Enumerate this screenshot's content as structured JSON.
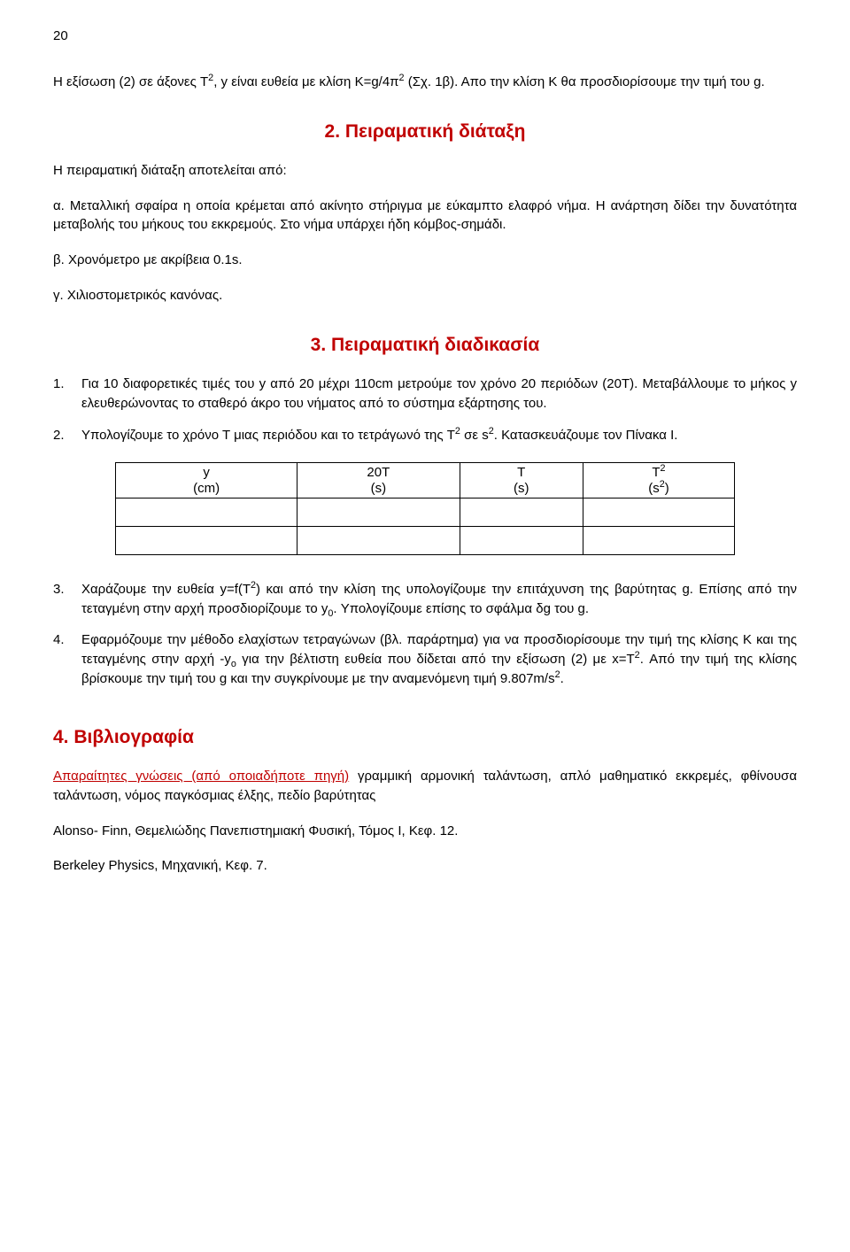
{
  "page_number": "20",
  "intro": {
    "eq_text_1": "Η εξίσωση (2) σε άξονες T",
    "eq_text_2": ", y είναι ευθεία με κλίση Κ=g/4π",
    "eq_text_3": " (Σχ. 1β). Απο την κλίση Κ θα προσ­διορίσουμε την τιμή του g."
  },
  "section2": {
    "title": "2. Πειραματική διάταξη",
    "lead": "Η πειραματική διάταξη αποτελείται από:",
    "items": {
      "a": "α. Μεταλλική σφαίρα η οποία κρέμεται από ακίνητο στήριγμα με εύκαμπτο ελαφρό νήμα. Η α­νάρτηση δίδει την δυνατότητα μεταβολής του μήκους του εκκρεμούς. Στο νήμα υπάρχει ήδη κόμβος-σημάδι.",
      "b": "β. Χρονόμετρο με ακρίβεια 0.1s.",
      "c": "γ. Χιλιοστομετρικός κανόνας."
    }
  },
  "section3": {
    "title": "3. Πειραματική διαδικασία",
    "items": {
      "1": "Για 10 διαφορετικές τιμές του y από 20 μέχρι 110cm μετρούμε τον χρόνο 20 περιόδων (20Τ). Μεταβάλλουμε το μήκος y ελευθερώνοντας το σταθερό άκρο του νήματος από το σύστημα εξάρτησης του.",
      "2_a": "Υπολογίζουμε το χρόνο Τ μιας περιόδου και το τετράγωνό της T",
      "2_b": " σε s",
      "2_c": ". Κατασκευάζουμε τον Πίνακα Ι.",
      "3_a": "Χαράζουμε την ευθεία y=f(T",
      "3_b": ") και από την κλίση της υπολογίζουμε την επιτάχυνση της βαρύτητας g. Επίσης από την τεταγμένη στην αρχή προσδιορίζουμε το y",
      "3_c": ". Υπολογίζουμε επίσης το σφάλμα δg του g.",
      "4_a": "Εφαρμόζουμε την μέθοδο ελαχίστων τετραγώνων (βλ. παράρτημα) για να προσδιορί­σουμε την τιμή της κλίσης Κ και της τεταγμένης στην αρχή -y",
      "4_b": " για την βέλτιστη ευθεία που δίδεται από την εξίσωση (2) με x=T",
      "4_c": ". Από την τιμή της κλίσης βρίσκουμε την τιμή του g και την συγκρίνουμε με την αναμενόμενη τιμή 9.807m/s",
      "4_d": "."
    }
  },
  "table": {
    "col1_line1": "y",
    "col1_line2": "(cm)",
    "col2_line1": "20T",
    "col2_line2": "(s)",
    "col3_line1": "T",
    "col3_line2": "(s)",
    "col4_line1_a": "T",
    "col4_line2_a": "(s",
    "col4_line2_b": ")"
  },
  "section4": {
    "title": "4. Βιβλιογραφία",
    "req_label": "Απαραίτητες γνώσεις (από οποιαδήποτε πηγή)",
    "req_text": "  γραμμική αρμονική ταλάντωση, απλό μα­θηματικό εκκρεμές, φθίνουσα ταλάντωση, νόμος παγκόσμιας έλξης, πεδίο βαρύτητας",
    "ref1": "Alonso- Finn, Θεμελιώδης Πανεπιστημιακή Φυσική, Τόμος Ι, Κεφ.  12.",
    "ref2": " Berkeley Physics, Μηχανική, Κεφ. 7."
  }
}
